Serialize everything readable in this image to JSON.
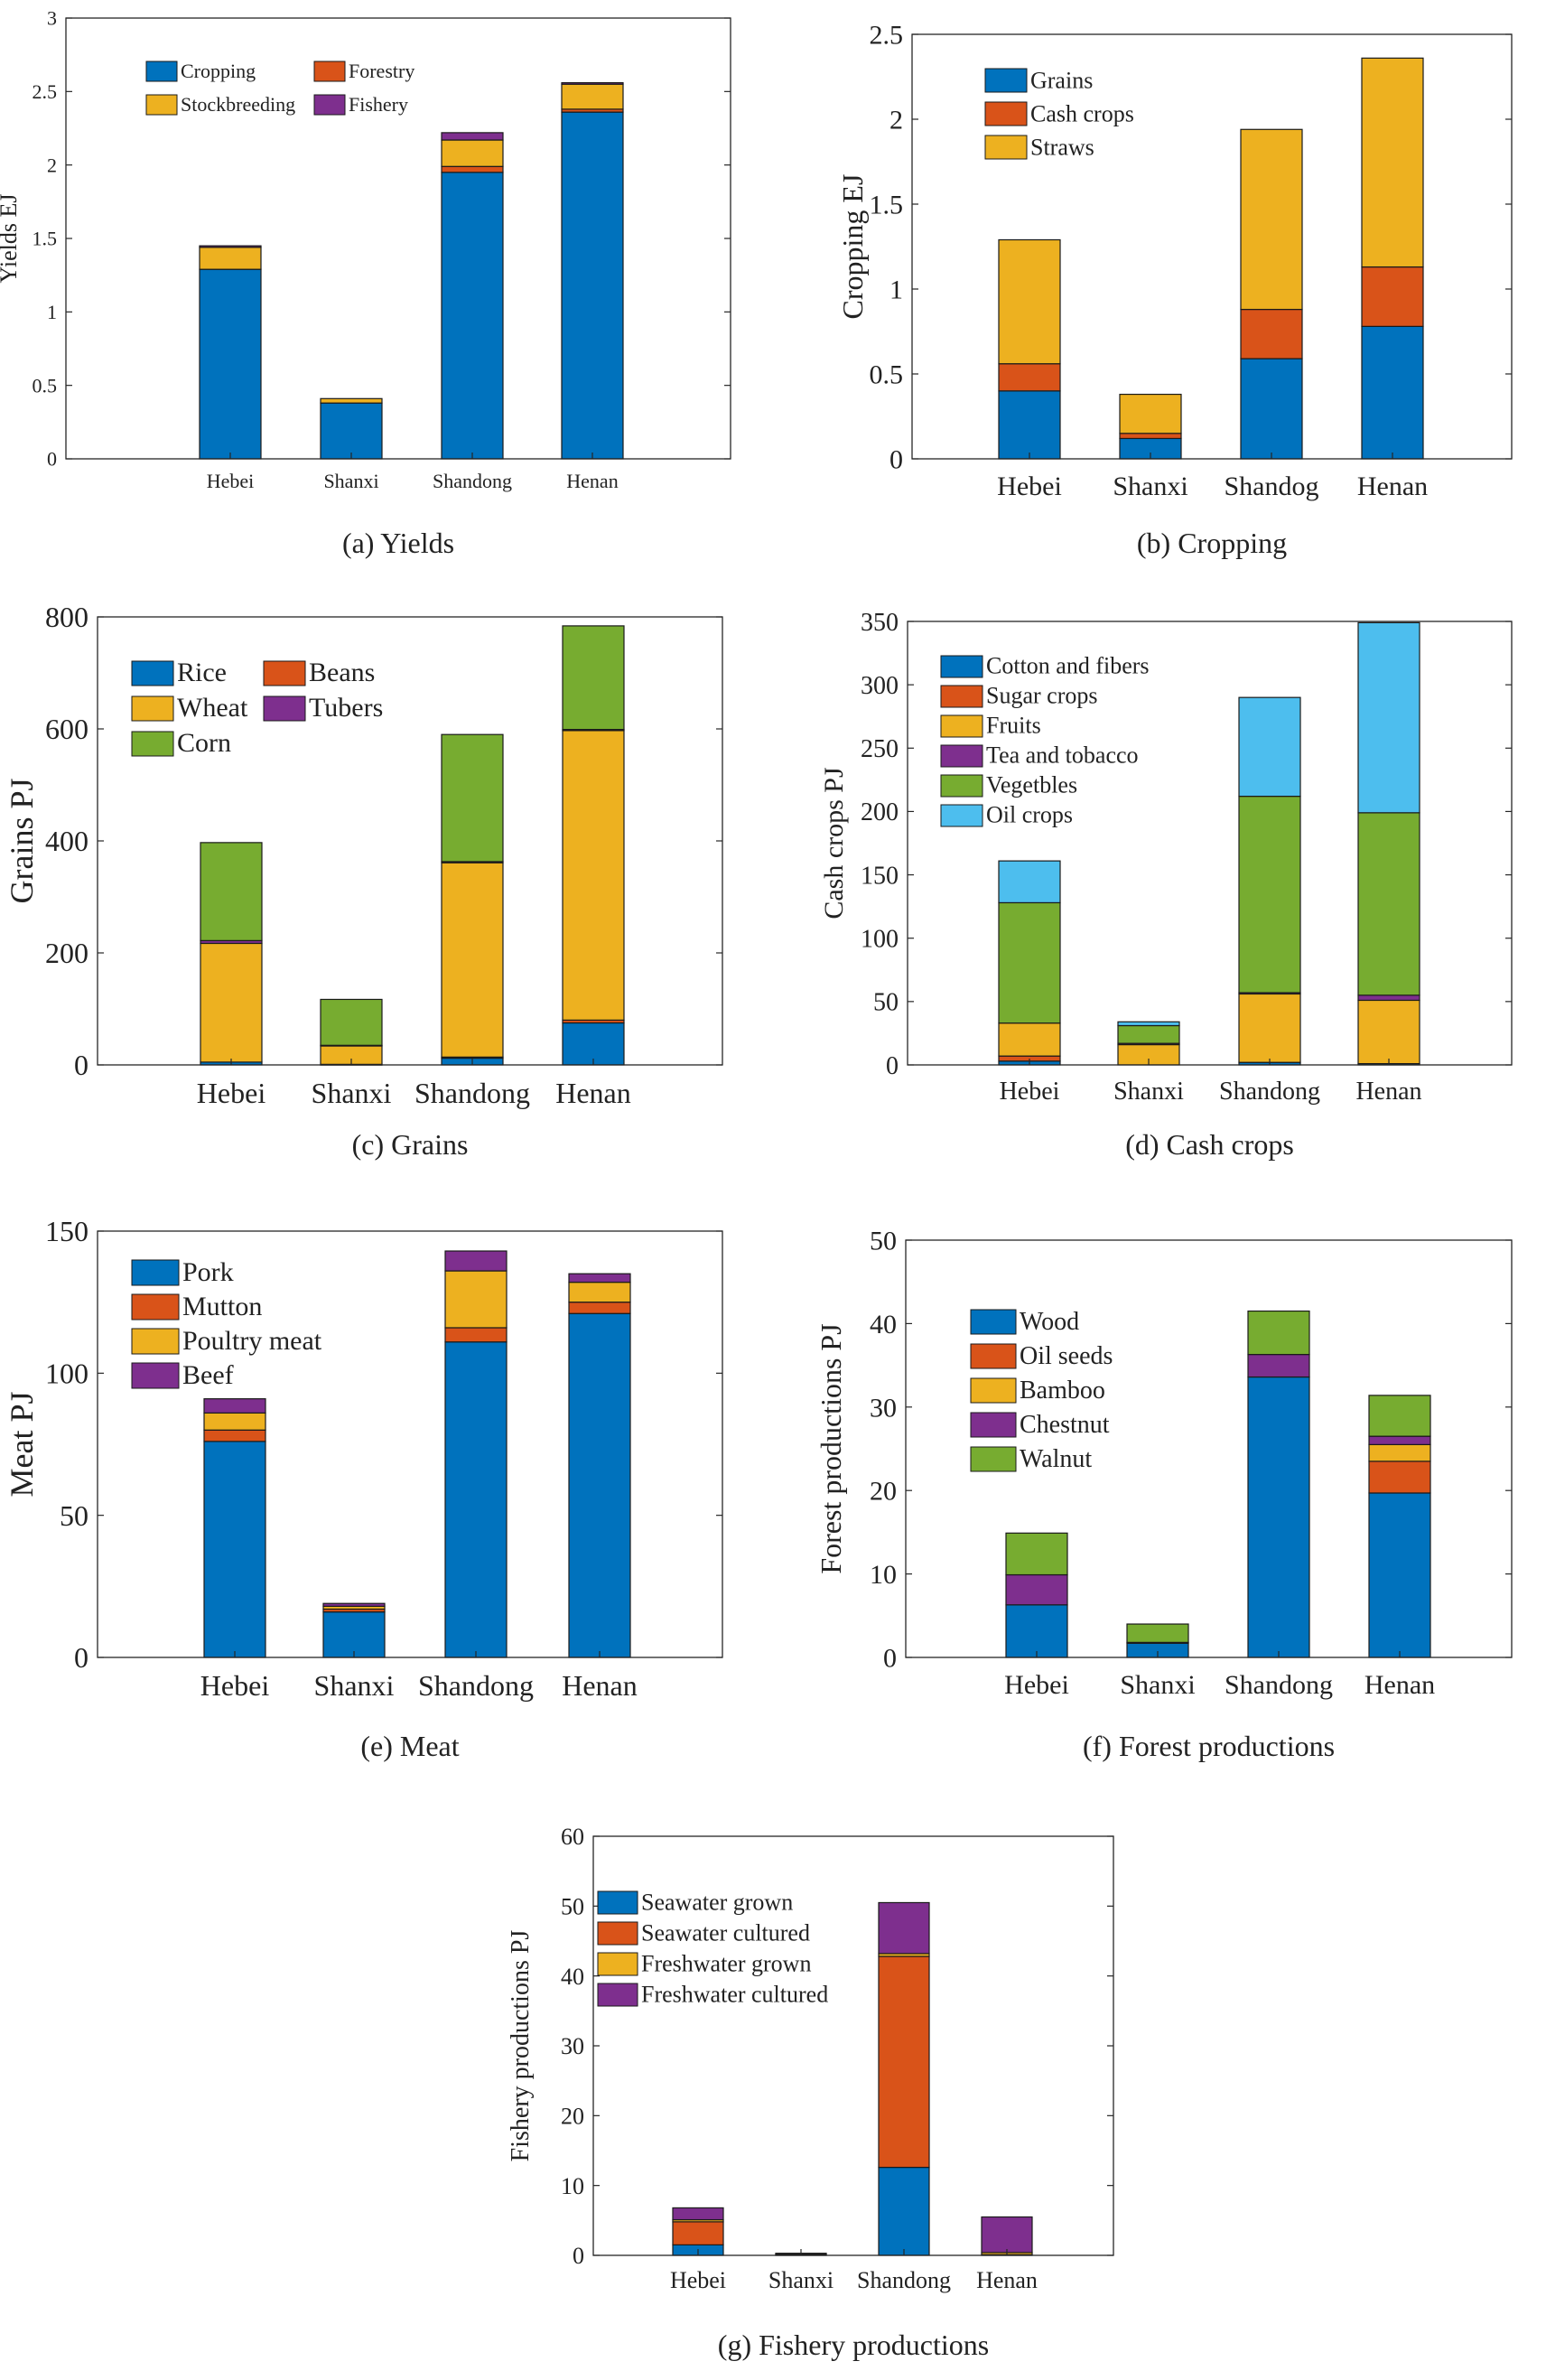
{
  "palette": [
    "#0072BD",
    "#D95319",
    "#EDB120",
    "#7E2F8E",
    "#77AC30",
    "#4DBEEE"
  ],
  "chart_data": [
    {
      "id": "a",
      "type": "bar",
      "stacked": true,
      "title": "(a) Yields",
      "ylabel": "Yields   EJ",
      "ylim": [
        0,
        3
      ],
      "yticks": [
        0,
        0.5,
        1,
        1.5,
        2,
        2.5,
        3
      ],
      "legend_columns": 2,
      "categories": [
        "Hebei",
        "Shanxi",
        "Shandong",
        "Henan"
      ],
      "series": [
        {
          "name": "Cropping",
          "values": [
            1.29,
            0.38,
            1.95,
            2.36
          ]
        },
        {
          "name": "Forestry",
          "values": [
            0.0,
            0.0,
            0.04,
            0.02
          ]
        },
        {
          "name": "Stockbreeding",
          "values": [
            0.15,
            0.03,
            0.18,
            0.17
          ]
        },
        {
          "name": "Fishery",
          "values": [
            0.01,
            0.0,
            0.05,
            0.01
          ]
        }
      ]
    },
    {
      "id": "b",
      "type": "bar",
      "stacked": true,
      "title": "(b) Cropping",
      "ylabel": "Cropping   EJ",
      "ylim": [
        0,
        2.5
      ],
      "yticks": [
        0,
        0.5,
        1,
        1.5,
        2,
        2.5
      ],
      "legend_columns": 1,
      "categories": [
        "Hebei",
        "Shanxi",
        "Shandog",
        "Henan"
      ],
      "series": [
        {
          "name": "Grains",
          "values": [
            0.4,
            0.12,
            0.59,
            0.78
          ]
        },
        {
          "name": "Cash crops",
          "values": [
            0.16,
            0.03,
            0.29,
            0.35
          ]
        },
        {
          "name": "Straws",
          "values": [
            0.73,
            0.23,
            1.06,
            1.23
          ]
        }
      ]
    },
    {
      "id": "c",
      "type": "bar",
      "stacked": true,
      "title": "(c) Grains",
      "ylabel": "Grains   PJ",
      "ylim": [
        0,
        800
      ],
      "yticks": [
        0,
        200,
        400,
        600,
        800
      ],
      "legend_columns": 2,
      "categories": [
        "Hebei",
        "Shanxi",
        "Shandong",
        "Henan"
      ],
      "series": [
        {
          "name": "Rice",
          "values": [
            5,
            1,
            12,
            75
          ]
        },
        {
          "name": "Beans",
          "values": [
            0,
            0,
            2,
            5
          ]
        },
        {
          "name": "Wheat",
          "values": [
            212,
            33,
            347,
            517
          ]
        },
        {
          "name": "Tubers",
          "values": [
            5,
            1,
            2,
            2
          ]
        },
        {
          "name": "Corn",
          "values": [
            175,
            82,
            227,
            185
          ]
        }
      ]
    },
    {
      "id": "d",
      "type": "bar",
      "stacked": true,
      "title": "(d) Cash crops",
      "ylabel": "Cash crops   PJ",
      "ylim": [
        0,
        350
      ],
      "yticks": [
        0,
        50,
        100,
        150,
        200,
        250,
        300,
        350
      ],
      "legend_columns": 1,
      "categories": [
        "Hebei",
        "Shanxi",
        "Shandong",
        "Henan"
      ],
      "series": [
        {
          "name": "Cotton and fibers",
          "values": [
            3,
            0,
            2,
            1
          ]
        },
        {
          "name": "Sugar crops",
          "values": [
            4,
            0,
            0,
            0
          ]
        },
        {
          "name": "Fruits",
          "values": [
            26,
            16,
            54,
            50
          ]
        },
        {
          "name": "Tea and tobacco",
          "values": [
            0,
            1,
            1,
            4
          ]
        },
        {
          "name": "Vegetbles",
          "values": [
            95,
            14,
            155,
            144
          ]
        },
        {
          "name": "Oil crops",
          "values": [
            33,
            3,
            78,
            150
          ]
        }
      ]
    },
    {
      "id": "e",
      "type": "bar",
      "stacked": true,
      "title": "(e) Meat",
      "ylabel": "Meat   PJ",
      "ylim": [
        0,
        150
      ],
      "yticks": [
        0,
        50,
        100,
        150
      ],
      "legend_columns": 1,
      "categories": [
        "Hebei",
        "Shanxi",
        "Shandong",
        "Henan"
      ],
      "series": [
        {
          "name": "Pork",
          "values": [
            76,
            16,
            111,
            121
          ]
        },
        {
          "name": "Mutton",
          "values": [
            4,
            1,
            5,
            4
          ]
        },
        {
          "name": "Poultry meat",
          "values": [
            6,
            1,
            20,
            7
          ]
        },
        {
          "name": "Beef",
          "values": [
            5,
            1,
            7,
            3
          ]
        }
      ]
    },
    {
      "id": "f",
      "type": "bar",
      "stacked": true,
      "title": "(f) Forest productions",
      "ylabel": "Forest productions   PJ",
      "ylim": [
        0,
        50
      ],
      "yticks": [
        0,
        10,
        20,
        30,
        40,
        50
      ],
      "legend_columns": 1,
      "categories": [
        "Hebei",
        "Shanxi",
        "Shandong",
        "Henan"
      ],
      "series": [
        {
          "name": "Wood",
          "values": [
            6.3,
            1.7,
            33.6,
            19.7
          ]
        },
        {
          "name": "Oil seeds",
          "values": [
            0,
            0,
            0,
            3.8
          ]
        },
        {
          "name": "Bamboo",
          "values": [
            0,
            0,
            0,
            2.0
          ]
        },
        {
          "name": "Chestnut",
          "values": [
            3.6,
            0.1,
            2.7,
            1.0
          ]
        },
        {
          "name": "Walnut",
          "values": [
            5.0,
            2.2,
            5.2,
            4.9
          ]
        }
      ]
    },
    {
      "id": "g",
      "type": "bar",
      "stacked": true,
      "title": "(g) Fishery productions",
      "ylabel": "Fishery productions   PJ",
      "ylim": [
        0,
        60
      ],
      "yticks": [
        0,
        10,
        20,
        30,
        40,
        50,
        60
      ],
      "legend_columns": 1,
      "categories": [
        "Hebei",
        "Shanxi",
        "Shandong",
        "Henan"
      ],
      "series": [
        {
          "name": "Seawater  grown",
          "values": [
            1.5,
            0.1,
            12.6,
            0.1
          ]
        },
        {
          "name": "Seawater cultured",
          "values": [
            3.3,
            0.1,
            30.2,
            0
          ]
        },
        {
          "name": "Freshwater grown",
          "values": [
            0.3,
            0.0,
            0.4,
            0.3
          ]
        },
        {
          "name": "Freshwater cultured",
          "values": [
            1.7,
            0.1,
            7.3,
            5.1
          ]
        }
      ]
    }
  ]
}
